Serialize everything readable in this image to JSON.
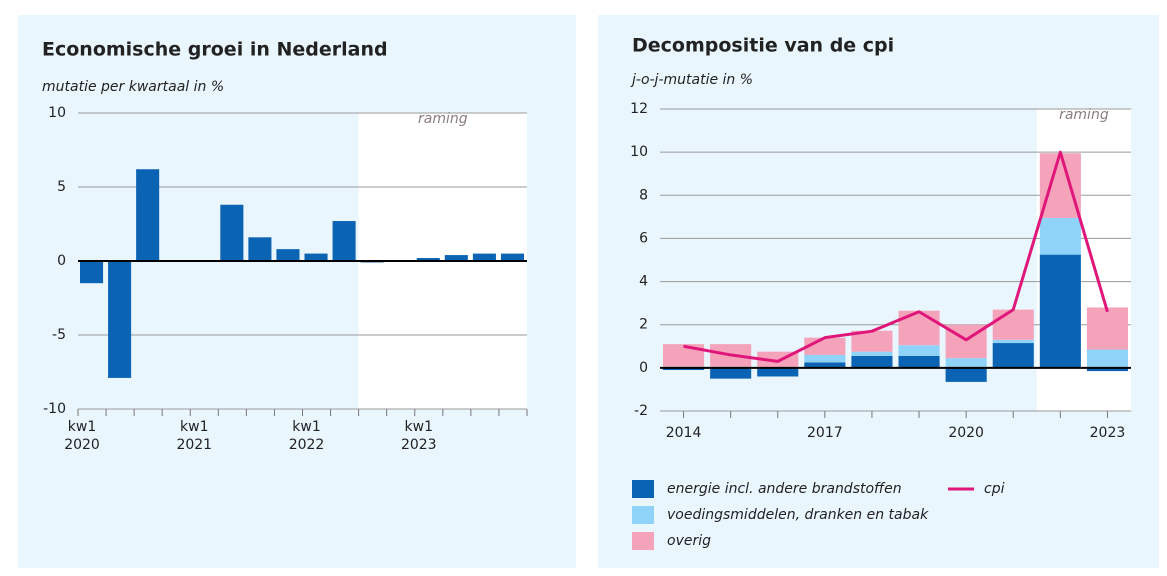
{
  "chart_data": [
    {
      "type": "bar",
      "title": "Economische groei in Nederland",
      "subtitle": "mutatie per kwartaal in %",
      "categories": [
        [
          "kw1",
          "2020"
        ],
        null,
        null,
        null,
        [
          "kw1",
          "2021"
        ],
        null,
        null,
        null,
        [
          "kw1",
          "2022"
        ],
        null,
        null,
        null,
        [
          "kw1",
          "2023"
        ],
        null,
        null,
        null
      ],
      "values": [
        -1.5,
        -7.9,
        6.2,
        0,
        0,
        3.8,
        1.6,
        0.8,
        0.5,
        2.7,
        -0.1,
        0,
        0.2,
        0.4,
        0.5,
        0.5
      ],
      "color": "#0a63b3",
      "ylim": [
        -10,
        10
      ],
      "yticks": [
        -10,
        -5,
        0,
        5,
        10
      ],
      "grid": true,
      "forecast_label": "raming",
      "forecast_start": 10
    },
    {
      "type": "stacked_bar",
      "title": "Decompositie van de cpi",
      "subtitle": "j-o-j-mutatie in %",
      "categories": [
        "2014",
        null,
        null,
        "2017",
        null,
        null,
        "2020",
        null,
        null,
        "2023"
      ],
      "series": [
        {
          "name": "energie incl. andere brandstoffen",
          "color": "#0a63b3",
          "values": [
            -0.1,
            -0.5,
            -0.4,
            0.25,
            0.55,
            0.55,
            -0.65,
            1.15,
            5.25,
            -0.15
          ]
        },
        {
          "name": "voedingsmiddelen, dranken en tabak",
          "color": "#8fd3f8",
          "values": [
            0.05,
            0,
            0,
            0.35,
            0.2,
            0.5,
            0.45,
            0.15,
            1.7,
            0.85
          ]
        },
        {
          "name": "overig",
          "color": "#f5a3ba",
          "values": [
            1.05,
            1.1,
            0.75,
            0.8,
            0.97,
            1.6,
            1.55,
            1.4,
            3.0,
            1.95
          ]
        },
        {
          "name": "cpi",
          "type": "line",
          "color": "#e0177b",
          "values": [
            1.0,
            0.6,
            0.3,
            1.4,
            1.7,
            2.6,
            1.3,
            2.7,
            10.0,
            2.6
          ]
        }
      ],
      "ylim": [
        -2,
        12
      ],
      "yticks": [
        -2,
        0,
        2,
        4,
        6,
        8,
        10,
        12
      ],
      "grid": true,
      "forecast_label": "raming",
      "forecast_start": 8
    }
  ]
}
